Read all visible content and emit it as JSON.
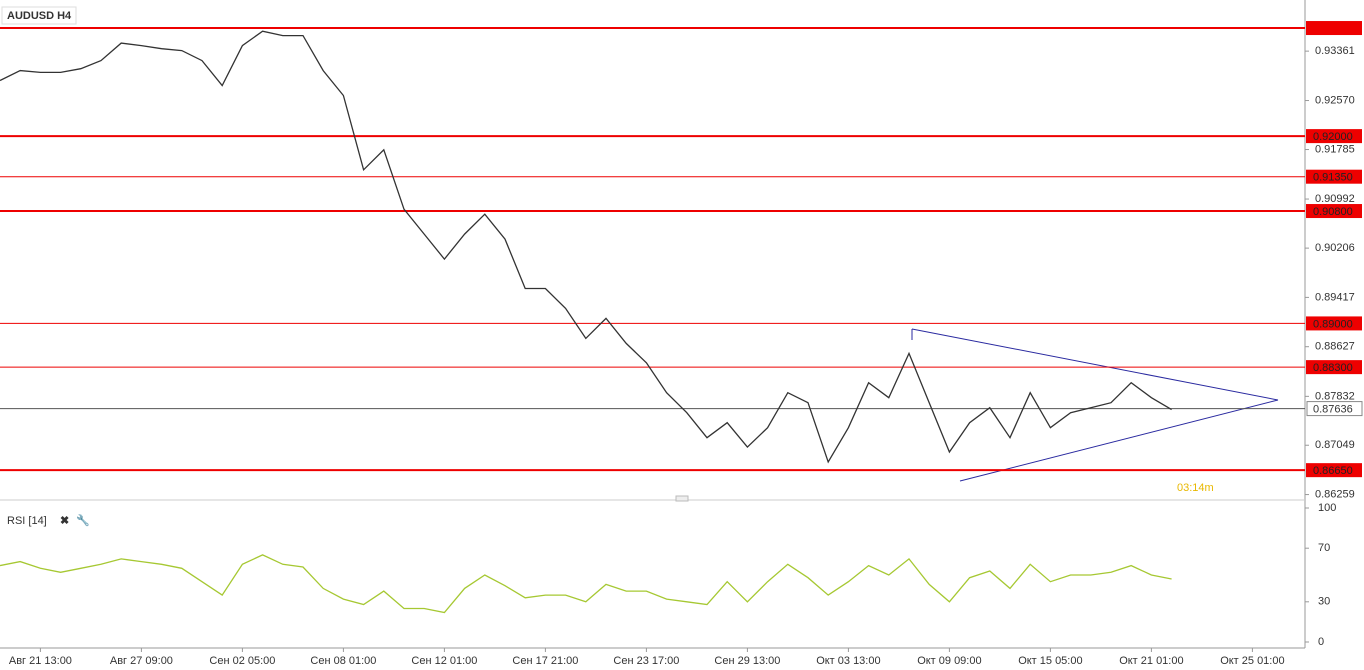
{
  "chart_data": [
    {
      "type": "line",
      "title": "AUDUSD H4",
      "countdown": "03:14m",
      "categories": [
        null,
        null,
        "Авг 21 13:00",
        null,
        null,
        null,
        null,
        "Авг 27 09:00",
        null,
        null,
        null,
        null,
        "Сен 02 05:00",
        null,
        null,
        null,
        null,
        "Сен 08 01:00",
        null,
        null,
        null,
        null,
        "Сен 12 01:00",
        null,
        null,
        null,
        null,
        "Сен 17 21:00",
        null,
        null,
        null,
        null,
        "Сен 23 17:00",
        null,
        null,
        null,
        null,
        "Сен 29 13:00",
        null,
        null,
        null,
        null,
        "Окт 03 13:00",
        null,
        null,
        null,
        null,
        "Окт 09 09:00",
        null,
        null,
        null,
        null,
        "Окт 15 05:00",
        null,
        null,
        null,
        null,
        "Окт 21 01:00",
        null,
        null,
        null,
        null,
        "Окт 25 01:00"
      ],
      "series": [
        {
          "name": "AUDUSD",
          "color": "#333333",
          "values": [
            0.9289,
            0.9305,
            0.9302,
            0.9302,
            0.9308,
            0.9321,
            0.9349,
            0.9345,
            0.934,
            0.9337,
            0.9321,
            0.9281,
            0.9345,
            0.9368,
            0.9361,
            0.9361,
            0.9305,
            0.9265,
            0.9146,
            0.9178,
            0.9083,
            0.9043,
            0.9003,
            0.9043,
            0.9075,
            0.9035,
            0.8956,
            0.8956,
            0.8924,
            0.8876,
            0.8908,
            0.8868,
            0.8837,
            0.8789,
            0.8757,
            0.8717,
            0.8741,
            0.8702,
            0.8733,
            0.8789,
            0.8773,
            0.8678,
            0.8733,
            0.8805,
            0.8781,
            0.8852,
            0.8773,
            0.8694,
            0.8741,
            0.8765,
            0.8717,
            0.8789,
            0.8733,
            0.8757,
            0.8765,
            0.8773,
            0.8805,
            0.8781,
            0.8762,
            null,
            null,
            null,
            null
          ]
        }
      ],
      "ylim": [
        0.8622,
        0.9418
      ],
      "yticks": [
        0.93361,
        {
          "value": 0.9257,
          "label": "0.92570"
        },
        0.91785,
        0.90992,
        0.90206,
        0.89417,
        0.88627,
        0.87832,
        0.87049,
        0.86259
      ],
      "levels": [
        {
          "value": 0.93731,
          "bold": true
        },
        {
          "value": 0.92,
          "label": "0.92000",
          "bold": true
        },
        {
          "value": 0.9135,
          "label": "0.91350",
          "bold": false
        },
        {
          "value": 0.908,
          "label": "0.90800",
          "bold": true
        },
        {
          "value": 0.89,
          "label": "0.89000",
          "bold": false
        },
        {
          "value": 0.883,
          "label": "0.88300",
          "bold": false
        },
        {
          "value": 0.8665,
          "label": "0.86650",
          "bold": true
        }
      ],
      "level_color": "#ee0000",
      "current_price": 0.87636
    },
    {
      "type": "line",
      "title": "RSI [14]",
      "series": [
        {
          "name": "RSI",
          "color": "#a6c832",
          "values": [
            57,
            60,
            55,
            52,
            55,
            58,
            62,
            60,
            58,
            55,
            45,
            35,
            58,
            65,
            58,
            56,
            40,
            32,
            28,
            38,
            25,
            25,
            22,
            40,
            50,
            42,
            33,
            35,
            35,
            30,
            43,
            38,
            38,
            32,
            30,
            28,
            45,
            30,
            45,
            58,
            48,
            35,
            45,
            57,
            50,
            62,
            43,
            30,
            48,
            53,
            40,
            58,
            45,
            50,
            50,
            52,
            57,
            50,
            47,
            null,
            null,
            null,
            null
          ]
        }
      ],
      "ylim": [
        0,
        100
      ],
      "yticks": [
        100,
        70,
        30,
        0
      ]
    }
  ]
}
